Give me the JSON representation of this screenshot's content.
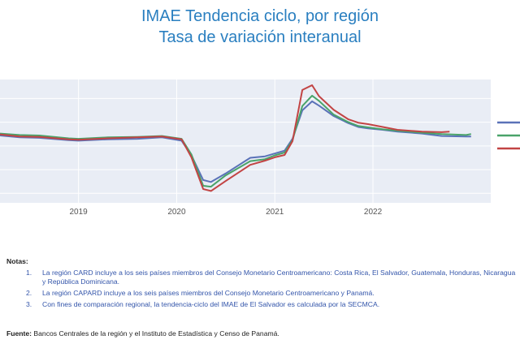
{
  "title": "IMAE Tendencia ciclo, por región",
  "subtitle": "Tasa de variación interanual",
  "notes_heading": "Notas:",
  "notes": [
    {
      "num": "1.",
      "text": "La región CARD incluye a los seis países miembros del Consejo Monetario Centroamericano: Costa Rica, El Salvador, Guatemala, Honduras, Nicaragua y República Dominicana."
    },
    {
      "num": "2.",
      "text": "La región CAPARD incluye a los seis países miembros del Consejo Monetario Centroamericano y Panamá."
    },
    {
      "num": "3.",
      "text": "Con fines de comparación regional, la tendencia-ciclo del IMAE de El Salvador es calculada por la SECMCA."
    }
  ],
  "source_label": "Fuente:",
  "source_text": "Bancos Centrales de la región y el Instituto de Estadística y Censo de Panamá.",
  "chart_data": {
    "type": "line",
    "x_tick_labels": [
      "2019",
      "2020",
      "2021",
      "2022"
    ],
    "x_range": [
      2018.2,
      2023.2
    ],
    "y_range": [
      -12,
      14
    ],
    "grid": true,
    "series": [
      {
        "color": "#5a72b8",
        "points": [
          [
            2018.2,
            2.2
          ],
          [
            2018.4,
            1.8
          ],
          [
            2018.6,
            1.7
          ],
          [
            2018.9,
            1.2
          ],
          [
            2019.0,
            1.1
          ],
          [
            2019.3,
            1.4
          ],
          [
            2019.6,
            1.5
          ],
          [
            2019.85,
            1.8
          ],
          [
            2020.05,
            1.1
          ],
          [
            2020.15,
            -2.0
          ],
          [
            2020.27,
            -7.2
          ],
          [
            2020.35,
            -7.6
          ],
          [
            2020.5,
            -5.8
          ],
          [
            2020.75,
            -2.5
          ],
          [
            2020.9,
            -2.2
          ],
          [
            2021.0,
            -1.6
          ],
          [
            2021.1,
            -1.0
          ],
          [
            2021.18,
            1.5
          ],
          [
            2021.28,
            7.5
          ],
          [
            2021.38,
            9.4
          ],
          [
            2021.45,
            8.5
          ],
          [
            2021.6,
            6.3
          ],
          [
            2021.75,
            4.8
          ],
          [
            2021.85,
            4.0
          ],
          [
            2021.95,
            3.7
          ],
          [
            2022.1,
            3.4
          ],
          [
            2022.25,
            3.0
          ],
          [
            2022.5,
            2.6
          ],
          [
            2022.7,
            2.1
          ],
          [
            2022.95,
            2.0
          ],
          [
            2023.0,
            2.0
          ]
        ]
      },
      {
        "color": "#4aa36a",
        "points": [
          [
            2018.2,
            2.6
          ],
          [
            2018.4,
            2.3
          ],
          [
            2018.6,
            2.2
          ],
          [
            2018.9,
            1.6
          ],
          [
            2019.0,
            1.5
          ],
          [
            2019.3,
            1.8
          ],
          [
            2019.6,
            1.9
          ],
          [
            2019.85,
            2.1
          ],
          [
            2020.05,
            1.5
          ],
          [
            2020.15,
            -1.8
          ],
          [
            2020.27,
            -8.4
          ],
          [
            2020.35,
            -8.6
          ],
          [
            2020.5,
            -6.2
          ],
          [
            2020.75,
            -3.2
          ],
          [
            2020.9,
            -2.8
          ],
          [
            2021.0,
            -2.0
          ],
          [
            2021.1,
            -1.4
          ],
          [
            2021.18,
            1.2
          ],
          [
            2021.28,
            8.4
          ],
          [
            2021.38,
            10.6
          ],
          [
            2021.45,
            9.5
          ],
          [
            2021.6,
            6.6
          ],
          [
            2021.75,
            5.0
          ],
          [
            2021.85,
            4.2
          ],
          [
            2021.95,
            3.9
          ],
          [
            2022.1,
            3.5
          ],
          [
            2022.25,
            3.2
          ],
          [
            2022.5,
            2.8
          ],
          [
            2022.7,
            2.5
          ],
          [
            2022.95,
            2.3
          ],
          [
            2023.0,
            2.5
          ]
        ]
      },
      {
        "color": "#c24444",
        "points": [
          [
            2018.2,
            2.4
          ],
          [
            2018.4,
            2.0
          ],
          [
            2018.6,
            1.9
          ],
          [
            2018.9,
            1.4
          ],
          [
            2019.0,
            1.3
          ],
          [
            2019.3,
            1.6
          ],
          [
            2019.6,
            1.8
          ],
          [
            2019.85,
            2.0
          ],
          [
            2020.05,
            1.4
          ],
          [
            2020.15,
            -2.4
          ],
          [
            2020.27,
            -9.1
          ],
          [
            2020.35,
            -9.5
          ],
          [
            2020.5,
            -7.4
          ],
          [
            2020.75,
            -4.0
          ],
          [
            2020.9,
            -3.1
          ],
          [
            2021.0,
            -2.4
          ],
          [
            2021.1,
            -1.9
          ],
          [
            2021.18,
            1.0
          ],
          [
            2021.28,
            11.8
          ],
          [
            2021.38,
            12.8
          ],
          [
            2021.45,
            10.5
          ],
          [
            2021.6,
            7.6
          ],
          [
            2021.75,
            5.6
          ],
          [
            2021.85,
            4.9
          ],
          [
            2021.95,
            4.6
          ],
          [
            2022.1,
            4.0
          ],
          [
            2022.25,
            3.4
          ],
          [
            2022.5,
            3.0
          ],
          [
            2022.7,
            2.9
          ],
          [
            2022.78,
            3.0
          ]
        ]
      }
    ]
  }
}
